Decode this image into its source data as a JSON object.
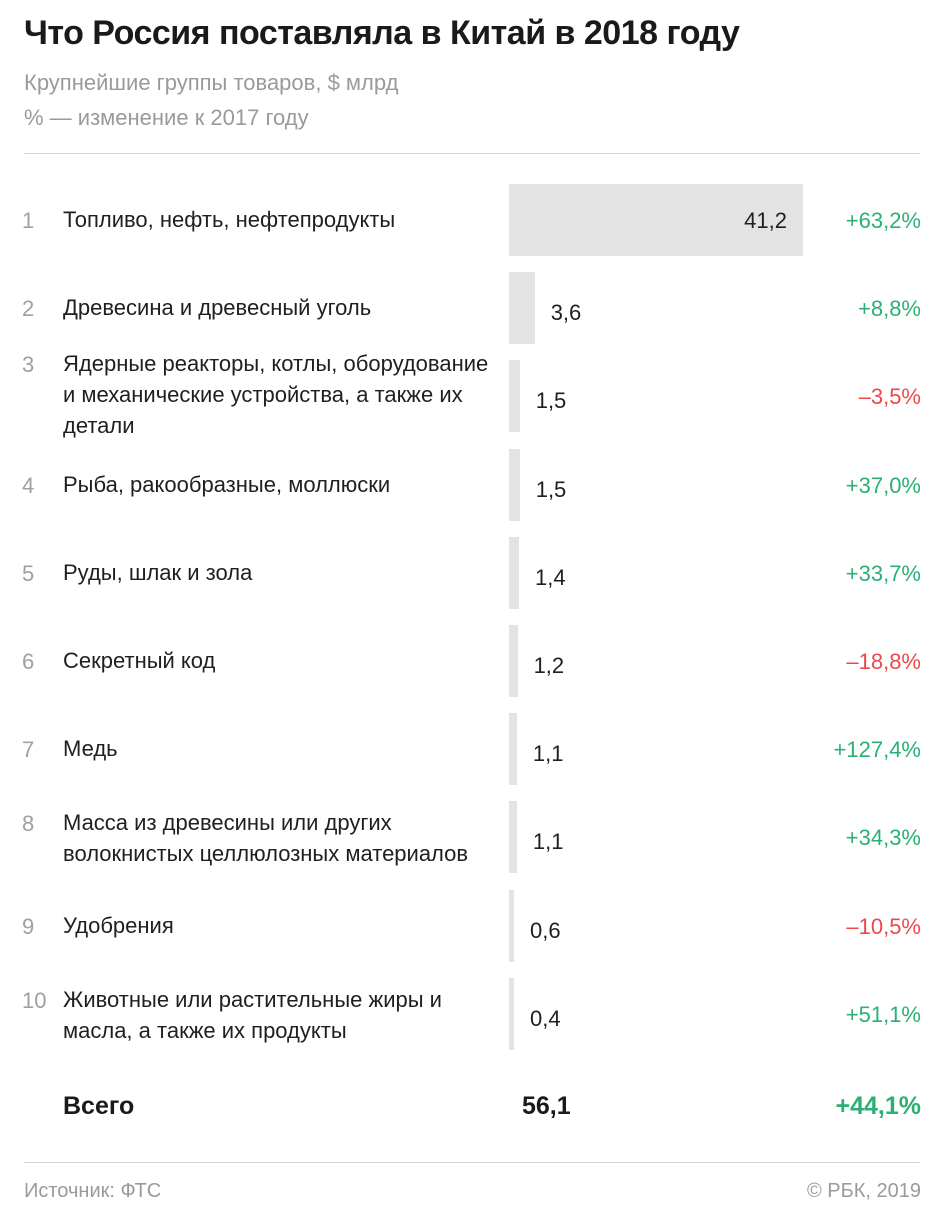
{
  "title": "Что Россия поставляла в Китай в 2018 году",
  "subtitle": "Крупнейшие группы товаров, $ млрд",
  "subtitle2": "% — изменение к 2017 году",
  "colors": {
    "bar": "#e3e3e3",
    "positive": "#2bb074",
    "negative": "#ec4a4a",
    "muted": "#9a9a9a"
  },
  "chart_data": {
    "type": "bar",
    "orientation": "horizontal",
    "unit": "$ млрд",
    "xlim": [
      0,
      41.2
    ],
    "rows": [
      {
        "rank": "1",
        "category": "Топливо, нефть, нефтепродукты",
        "value": 41.2,
        "value_label": "41,2",
        "change": "+63,2%",
        "change_sign": "positive"
      },
      {
        "rank": "2",
        "category": "Древесина и древесный уголь",
        "value": 3.6,
        "value_label": "3,6",
        "change": "+8,8%",
        "change_sign": "positive"
      },
      {
        "rank": "3",
        "category": "Ядерные реакторы, котлы, оборудование и механические устройства, а также их детали",
        "value": 1.5,
        "value_label": "1,5",
        "change": "–3,5%",
        "change_sign": "negative"
      },
      {
        "rank": "4",
        "category": "Рыба, ракообразные, моллюски",
        "value": 1.5,
        "value_label": "1,5",
        "change": "+37,0%",
        "change_sign": "positive"
      },
      {
        "rank": "5",
        "category": "Руды, шлак и зола",
        "value": 1.4,
        "value_label": "1,4",
        "change": "+33,7%",
        "change_sign": "positive"
      },
      {
        "rank": "6",
        "category": "Секретный код",
        "value": 1.2,
        "value_label": "1,2",
        "change": "–18,8%",
        "change_sign": "negative"
      },
      {
        "rank": "7",
        "category": "Медь",
        "value": 1.1,
        "value_label": "1,1",
        "change": "+127,4%",
        "change_sign": "positive"
      },
      {
        "rank": "8",
        "category": "Масса из древесины или других волокнистых целлюлозных материалов",
        "value": 1.1,
        "value_label": "1,1",
        "change": "+34,3%",
        "change_sign": "positive"
      },
      {
        "rank": "9",
        "category": "Удобрения",
        "value": 0.6,
        "value_label": "0,6",
        "change": "–10,5%",
        "change_sign": "negative"
      },
      {
        "rank": "10",
        "category": "Животные или растительные жиры и масла, а также их продукты",
        "value": 0.4,
        "value_label": "0,4",
        "change": "+51,1%",
        "change_sign": "positive"
      }
    ],
    "total": {
      "label": "Всего",
      "value_label": "56,1",
      "change": "+44,1%",
      "change_sign": "positive"
    }
  },
  "footer": {
    "source": "Источник: ФТС",
    "copyright": "© РБК, 2019"
  }
}
